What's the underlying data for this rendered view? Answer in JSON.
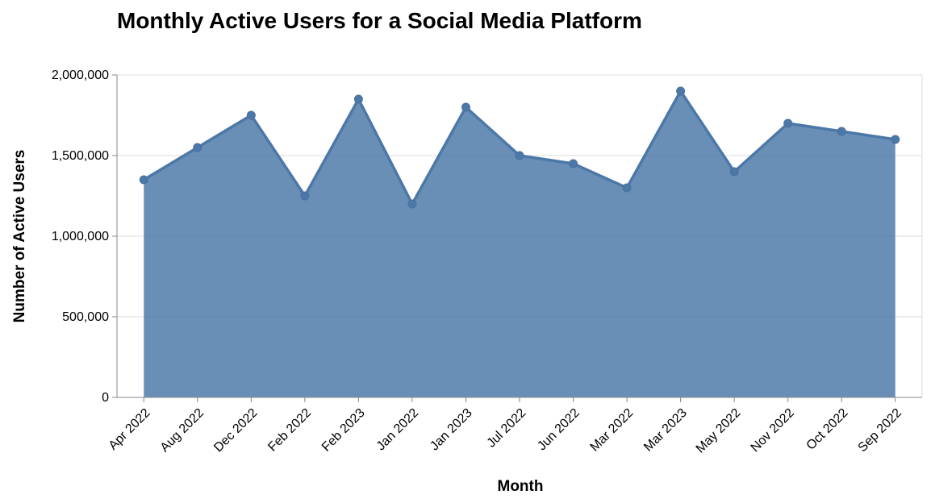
{
  "chart_data": {
    "type": "area",
    "title": "Monthly Active Users for a Social Media Platform",
    "xlabel": "Month",
    "ylabel": "Number of Active Users",
    "categories": [
      "Apr 2022",
      "Aug 2022",
      "Dec 2022",
      "Feb 2022",
      "Feb 2023",
      "Jan 2022",
      "Jan 2023",
      "Jul 2022",
      "Jun 2022",
      "Mar 2022",
      "Mar 2023",
      "May 2022",
      "Nov 2022",
      "Oct 2022",
      "Sep 2022"
    ],
    "values": [
      1350000,
      1550000,
      1750000,
      1250000,
      1850000,
      1200000,
      1800000,
      1500000,
      1450000,
      1300000,
      1900000,
      1400000,
      1700000,
      1650000,
      1600000
    ],
    "ylim": [
      0,
      2000000
    ],
    "yticks": [
      0,
      500000,
      1000000,
      1500000,
      2000000
    ],
    "ytick_labels": [
      "0",
      "500,000",
      "1,000,000",
      "1,500,000",
      "2,000,000"
    ],
    "grid": true,
    "legend": "none",
    "colors": {
      "area_fill": "#4c78a8",
      "line": "#4c78a8",
      "points": "#4c78a8"
    }
  }
}
